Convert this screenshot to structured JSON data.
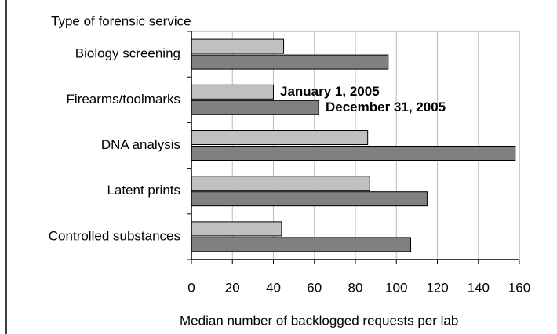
{
  "chart_data": {
    "type": "barh",
    "y_label": "Type of forensic service",
    "x_label": "Median number of backlogged requests per lab",
    "categories": [
      "Biology screening",
      "Firearms/toolmarks",
      "DNA analysis",
      "Latent prints",
      "Controlled substances"
    ],
    "series": [
      {
        "name": "January 1, 2005",
        "color": "#c0c0c0",
        "values": [
          45,
          40,
          86,
          87,
          44
        ]
      },
      {
        "name": "December 31, 2005",
        "color": "#808080",
        "values": [
          96,
          62,
          158,
          115,
          107
        ]
      }
    ],
    "xlim": [
      0,
      160
    ],
    "xticks": [
      0,
      20,
      40,
      60,
      80,
      100,
      120,
      140,
      160
    ],
    "grid": true
  }
}
